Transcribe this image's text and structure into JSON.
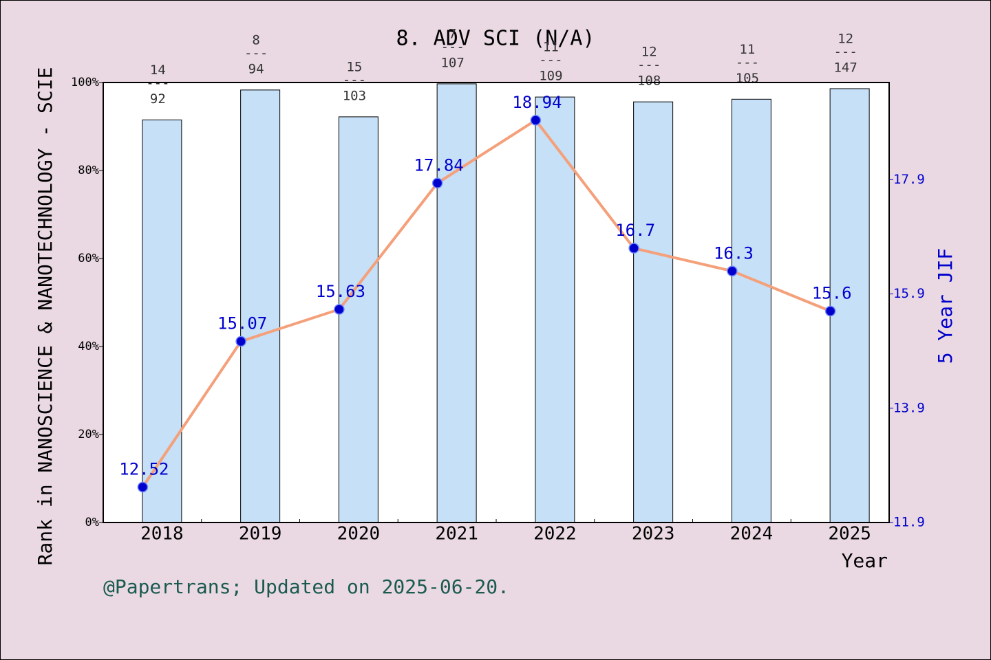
{
  "chart_data": {
    "type": "combo",
    "title": "8. ADV SCI (N/A)",
    "y_label": "Rank in NANOSCIENCE & NANOTECHNOLOGY - SCIE",
    "y2_label": "5 Year JIF",
    "x_label": "Year",
    "footer": "@Papertrans; Updated on 2025-06-20.",
    "categories": [
      "2018",
      "2019",
      "2020",
      "2021",
      "2022",
      "2023",
      "2024",
      "2025"
    ],
    "series": [
      {
        "type": "bar",
        "color": "#c5e0f7",
        "values": [
          91.5,
          98.3,
          92.2,
          99.7,
          96.7,
          95.6,
          96.2,
          98.6
        ],
        "annotations": [
          [
            "14",
            "---",
            "92"
          ],
          [
            "8",
            "---",
            "94"
          ],
          [
            "15",
            "---",
            "103"
          ],
          [
            "7",
            "---",
            "107"
          ],
          [
            "11",
            "---",
            "109"
          ],
          [
            "12",
            "---",
            "108"
          ],
          [
            "11",
            "---",
            "105"
          ],
          [
            "12",
            "---",
            "147"
          ]
        ]
      },
      {
        "type": "line",
        "axis": "y2",
        "color": "#f4a07a",
        "marker_color": "#0000cc",
        "values": [
          12.52,
          15.07,
          15.63,
          17.84,
          18.94,
          16.7,
          16.3,
          15.6
        ]
      }
    ],
    "ylim": [
      0,
      100
    ],
    "yticks": [
      {
        "value": 0,
        "label": "0%"
      },
      {
        "value": 20,
        "label": "20%"
      },
      {
        "value": 40,
        "label": "40%"
      },
      {
        "value": 60,
        "label": "60%"
      },
      {
        "value": 80,
        "label": "80%"
      },
      {
        "value": 100,
        "label": "100%"
      }
    ],
    "y2lim": [
      11.9,
      19.6
    ],
    "y2ticks": [
      11.9,
      13.9,
      15.9,
      17.9
    ]
  }
}
